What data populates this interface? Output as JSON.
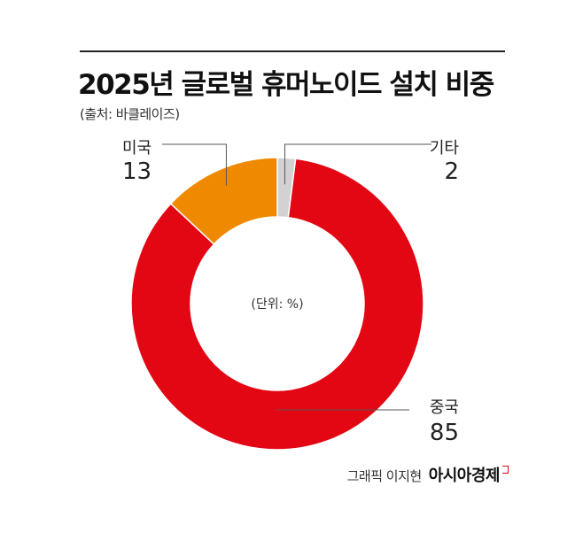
{
  "header": {
    "title": "2025년 글로벌 휴머노이드 설치 비중",
    "source": "(출처: 바클레이즈)"
  },
  "chart_data": {
    "type": "pie",
    "variant": "donut",
    "unit_label": "(단위: %)",
    "slices": [
      {
        "label": "기타",
        "value": 2,
        "color": "#d2d2d2"
      },
      {
        "label": "중국",
        "value": 85,
        "color": "#e30613"
      },
      {
        "label": "미국",
        "value": 13,
        "color": "#ef8a00"
      }
    ],
    "start_angle_deg": 0,
    "direction": "clockwise"
  },
  "footer": {
    "credit": "그래픽 이지현",
    "brand": "아시아경제"
  }
}
